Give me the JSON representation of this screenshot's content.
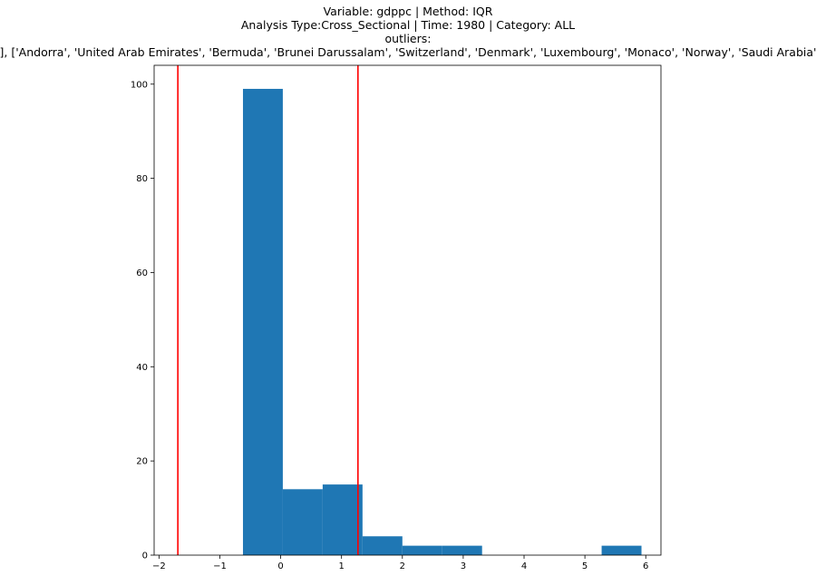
{
  "chart_data": {
    "type": "bar",
    "title_lines": [
      "Variable: gdppc | Method: IQR",
      "Analysis Type:Cross_Sectional | Time: 1980 | Category: ALL",
      "outliers:",
      "([], ['Andorra', 'United Arab Emirates', 'Bermuda', 'Brunei Darussalam', 'Switzerland', 'Denmark', 'Luxembourg', 'Monaco', 'Norway', 'Saudi Arabia'])"
    ],
    "xlabel": "",
    "ylabel": "",
    "xlim": [
      -2.08,
      6.25
    ],
    "ylim": [
      0,
      104
    ],
    "x_ticks": [
      -2,
      -1,
      0,
      1,
      2,
      3,
      4,
      5,
      6
    ],
    "x_tick_labels": [
      "−2",
      "−1",
      "0",
      "1",
      "2",
      "3",
      "4",
      "5",
      "6"
    ],
    "y_ticks": [
      0,
      20,
      40,
      60,
      80,
      100
    ],
    "y_tick_labels": [
      "0",
      "20",
      "40",
      "60",
      "80",
      "100"
    ],
    "grid": false,
    "bar_color": "#1f77b4",
    "bins": [
      {
        "x0": -0.62,
        "x1": 0.035,
        "count": 99
      },
      {
        "x0": 0.035,
        "x1": 0.69,
        "count": 14
      },
      {
        "x0": 0.69,
        "x1": 1.345,
        "count": 15
      },
      {
        "x0": 1.345,
        "x1": 2.0,
        "count": 4
      },
      {
        "x0": 2.0,
        "x1": 2.655,
        "count": 2
      },
      {
        "x0": 2.655,
        "x1": 3.31,
        "count": 2
      },
      {
        "x0": 3.31,
        "x1": 3.965,
        "count": 0
      },
      {
        "x0": 3.965,
        "x1": 4.62,
        "count": 0
      },
      {
        "x0": 4.62,
        "x1": 5.275,
        "count": 0
      },
      {
        "x0": 5.275,
        "x1": 5.93,
        "count": 2
      }
    ],
    "threshold_lines": {
      "color": "#ff0000",
      "values": [
        -1.69,
        1.27
      ]
    }
  }
}
